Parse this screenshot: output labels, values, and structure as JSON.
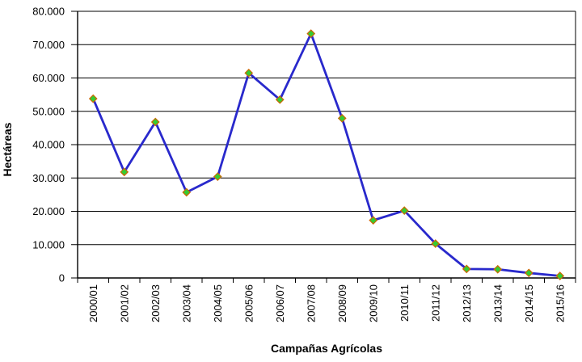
{
  "chart_data": {
    "type": "line",
    "title": "",
    "xlabel": "Campañas Agrícolas",
    "ylabel": "Hectáreas",
    "categories": [
      "2000/01",
      "2001/02",
      "2002/03",
      "2003/04",
      "2004/05",
      "2005/06",
      "2006/07",
      "2007/08",
      "2008/09",
      "2009/10",
      "2010/11",
      "2011/12",
      "2012/13",
      "2013/14",
      "2014/15",
      "2015/16"
    ],
    "values": [
      53800,
      31800,
      46800,
      25700,
      30400,
      61500,
      53500,
      73300,
      47900,
      17300,
      20200,
      10300,
      2700,
      2600,
      1500,
      600
    ],
    "ylim": [
      0,
      80000
    ],
    "ytick_step": 10000,
    "ytick_labels": [
      "0",
      "10.000",
      "20.000",
      "30.000",
      "40.000",
      "50.000",
      "60.000",
      "70.000",
      "80.000"
    ],
    "grid": true,
    "legend": "none",
    "marker": "diamond",
    "colors": {
      "line": "#2929CC",
      "marker_fill": "#33CC33",
      "marker_border": "#CC6600",
      "axis": "#000000",
      "gridline": "#000000",
      "text": "#000000",
      "background": "#FFFFFF"
    }
  }
}
